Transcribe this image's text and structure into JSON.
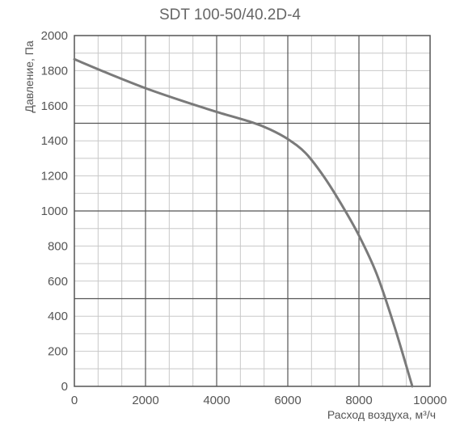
{
  "chart_data": {
    "type": "line",
    "title": "SDT 100-50/40.2D-4",
    "xlabel": "Расход воздуха, м³/ч",
    "ylabel": "Давление, Па",
    "xlim": [
      0,
      10000
    ],
    "ylim": [
      0,
      2000
    ],
    "x_ticks": [
      "0",
      "2000",
      "4000",
      "6000",
      "8000",
      "10000"
    ],
    "y_ticks": [
      "0",
      "200",
      "400",
      "600",
      "800",
      "1000",
      "1200",
      "1400",
      "1600",
      "1800",
      "2000"
    ],
    "grid": true,
    "series": [
      {
        "x": [
          0,
          1000,
          2000,
          3000,
          4000,
          5000,
          5500,
          6000,
          6500,
          7000,
          7500,
          8000,
          8500,
          9000,
          9500
        ],
        "y": [
          1865,
          1780,
          1700,
          1630,
          1565,
          1505,
          1465,
          1410,
          1330,
          1200,
          1040,
          860,
          640,
          340,
          0
        ]
      }
    ],
    "colors": {
      "line": "#7a7a7a",
      "grid_major": "#555555",
      "grid_minor": "#c8c8c8",
      "frame": "#555555"
    }
  }
}
